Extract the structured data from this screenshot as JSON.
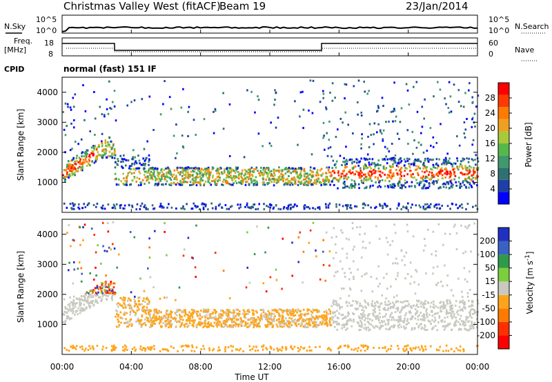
{
  "header": {
    "title": "Christmas Valley West (fitACF)",
    "beam": "Beam 19",
    "date": "23/Jan/2014"
  },
  "top_panel": {
    "left_top": "N.Sky",
    "left_top_ticks": [
      "10^5",
      "10^0"
    ],
    "right_top": "N.Search",
    "right_top_ticks": [
      "10^5",
      "10^0"
    ],
    "left_freq": "Freq.",
    "left_freq_unit": "[MHz]",
    "freq_ticks": [
      "18",
      "8"
    ],
    "right_nave": "Nave",
    "nave_ticks": [
      "60",
      "0"
    ],
    "cpid_label": "CPID",
    "cpid_value": "normal (fast) 151 IF"
  },
  "colors": {
    "power": [
      "#0000ff",
      "#1f3fa8",
      "#2f7070",
      "#3e9a6b",
      "#57b84a",
      "#a9c83a",
      "#f0a020",
      "#ff7a00",
      "#ff3a00",
      "#ff0000"
    ],
    "velocity": [
      "#2030c0",
      "#3a62c4",
      "#2f9a4a",
      "#7ccf3c",
      "#c9c9c0",
      "#ffa41a",
      "#ff7a00",
      "#ff3000",
      "#ff0000"
    ]
  },
  "chart_data": [
    {
      "type": "heatmap",
      "name": "power",
      "xlabel": "",
      "ylabel": "Slant Range [km]",
      "yticks": [
        "1000",
        "2000",
        "3000",
        "4000"
      ],
      "ylim": [
        0,
        4500
      ],
      "xlim": [
        "00:00",
        "24:00"
      ],
      "colorbar_label": "Power [dB]",
      "colorbar_ticks": [
        "4",
        "8",
        "12",
        "16",
        "20",
        "24",
        "28"
      ]
    },
    {
      "type": "heatmap",
      "name": "velocity",
      "xlabel": "Time UT",
      "ylabel": "Slant Range [km]",
      "yticks": [
        "1000",
        "2000",
        "3000",
        "4000"
      ],
      "ylim": [
        0,
        4500
      ],
      "xlim": [
        "00:00",
        "24:00"
      ],
      "xticks": [
        "00:00",
        "04:00",
        "08:00",
        "12:00",
        "16:00",
        "20:00",
        "00:00"
      ],
      "colorbar_label": "Velocity [m s^-1]",
      "colorbar_ticks": [
        "200",
        "100",
        "50",
        "15",
        "-15",
        "-50",
        "-100",
        "-200"
      ]
    }
  ]
}
